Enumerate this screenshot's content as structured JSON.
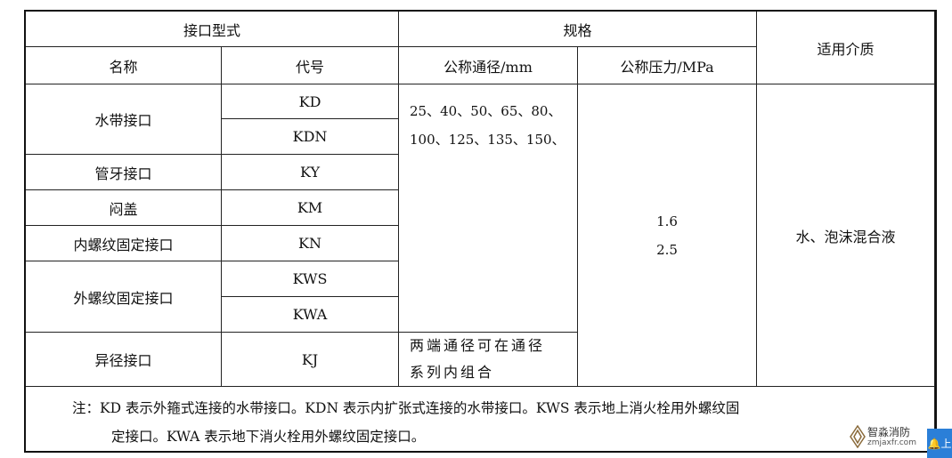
{
  "header": {
    "interface_type": "接口型式",
    "spec": "规格",
    "medium": "适用介质",
    "name": "名称",
    "code": "代号",
    "nominal_diameter": "公称通径/mm",
    "nominal_pressure": "公称压力/MPa"
  },
  "rows": [
    {
      "name": "水带接口",
      "codes": [
        "KD",
        "KDN"
      ]
    },
    {
      "name": "管牙接口",
      "codes": [
        "KY"
      ]
    },
    {
      "name": "闷盖",
      "codes": [
        "KM"
      ]
    },
    {
      "name": "内螺纹固定接口",
      "codes": [
        "KN"
      ]
    },
    {
      "name": "外螺纹固定接口",
      "codes": [
        "KWS",
        "KWA"
      ]
    },
    {
      "name": "异径接口",
      "codes": [
        "KJ"
      ]
    }
  ],
  "diameters": {
    "line1": "25、40、50、65、80、",
    "line2": "100、125、135、150、",
    "combo_line1": "两端通径可在通径",
    "combo_line2": "系列内组合"
  },
  "pressures": [
    "1.6",
    "2.5"
  ],
  "medium_value": "水、泡沫混合液",
  "note": {
    "line1": "注：KD 表示外箍式连接的水带接口。KDN 表示内扩张式连接的水带接口。KWS 表示地上消火栓用外螺纹固",
    "line2": "定接口。KWA 表示地下消火栓用外螺纹固定接口。"
  },
  "watermark": {
    "name": "智淼消防",
    "url": "zmjaxfr.com"
  },
  "side_button": {
    "label": "上",
    "color": "#2b7fd8"
  }
}
